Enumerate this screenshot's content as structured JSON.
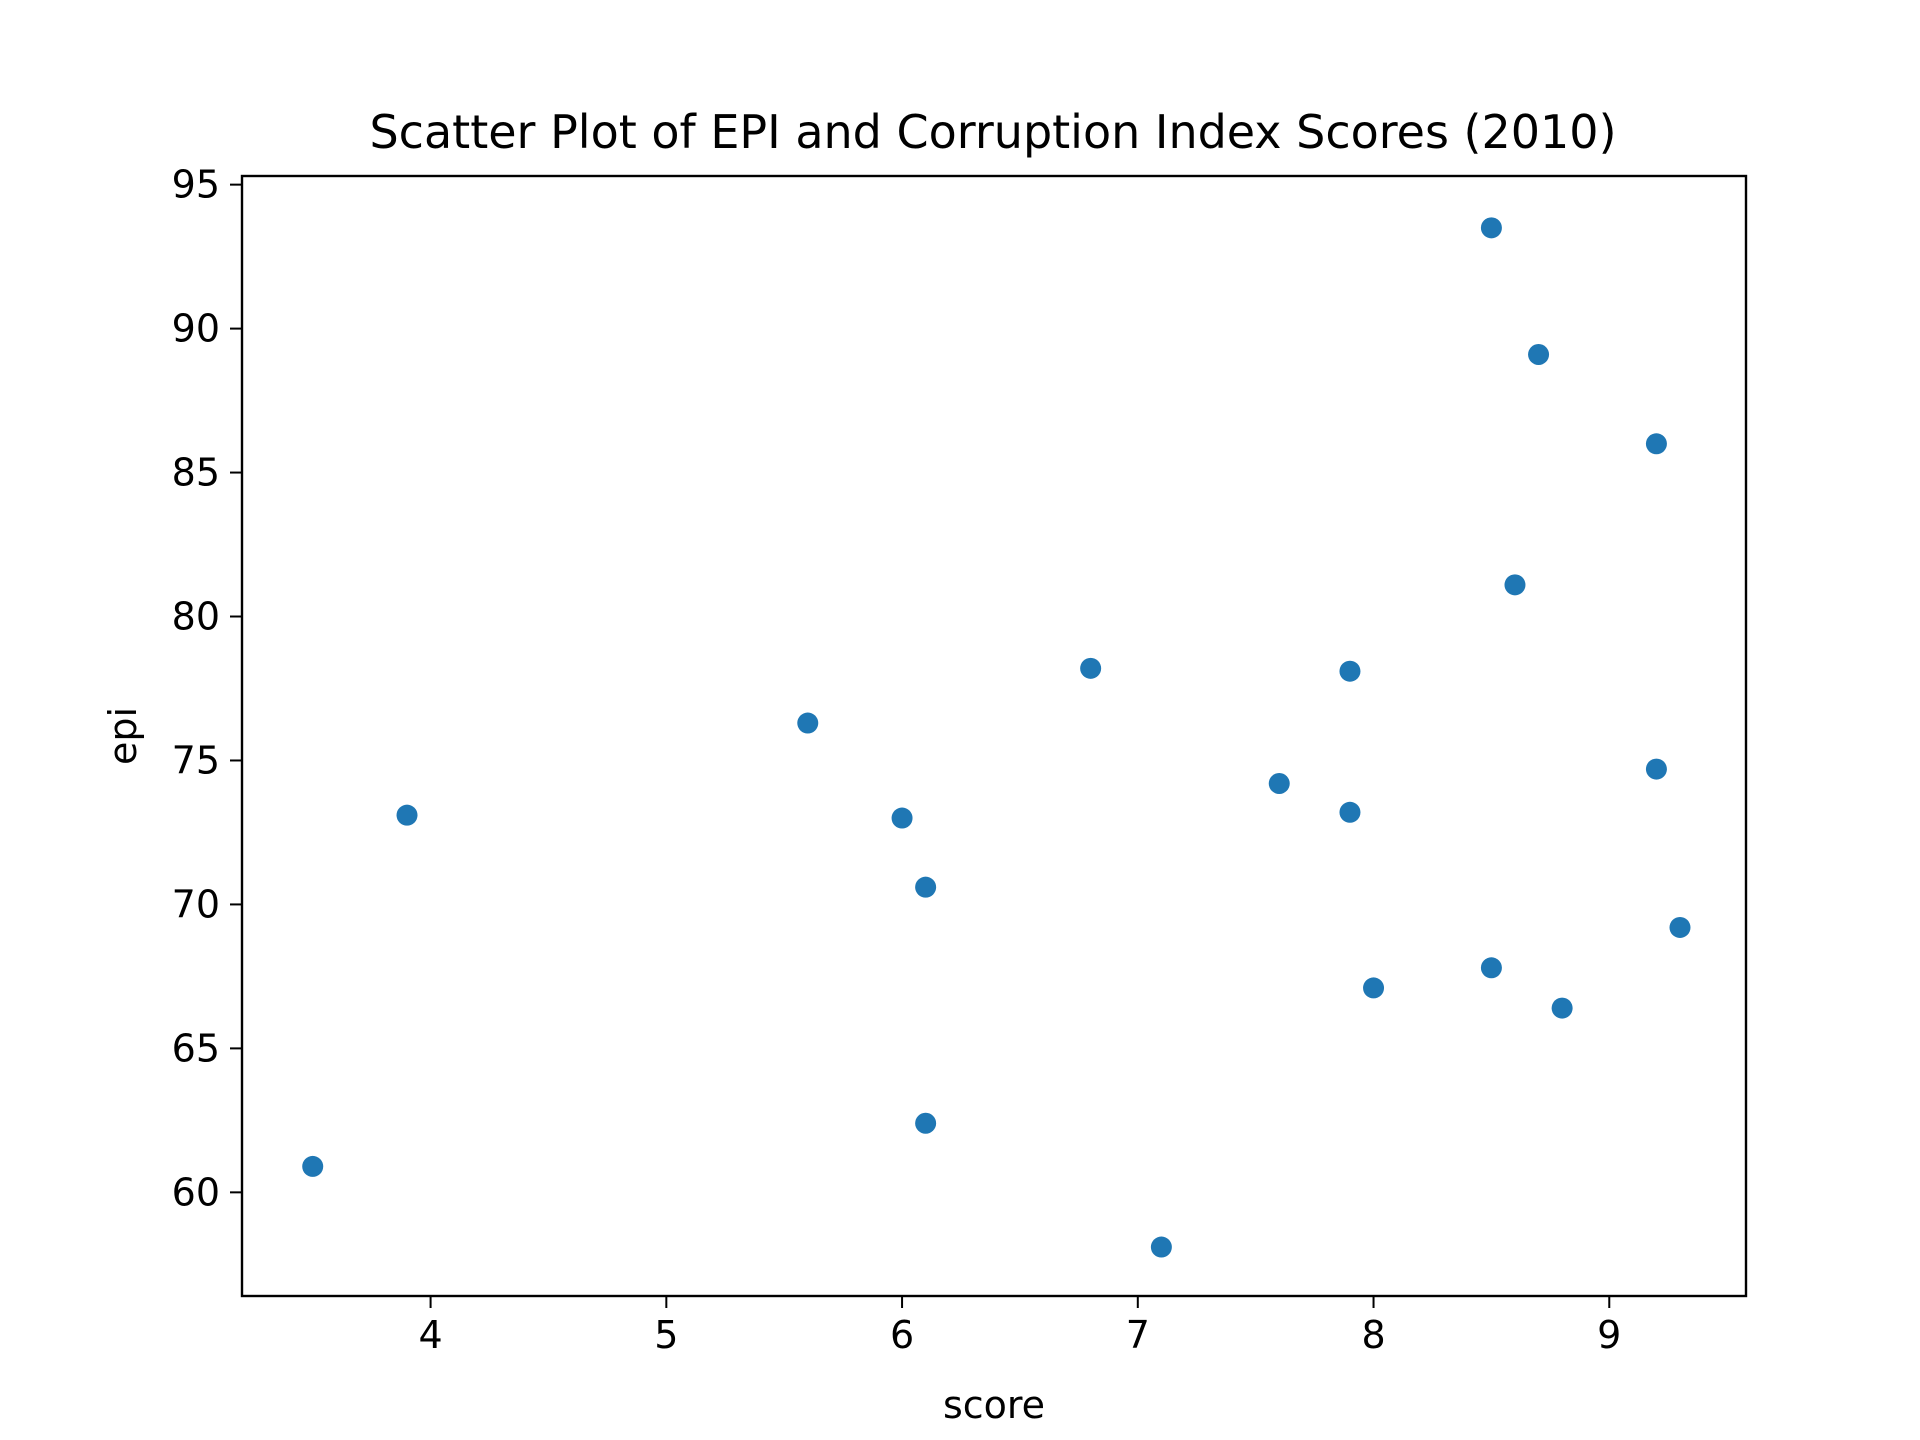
{
  "chart_data": {
    "type": "scatter",
    "title": "Scatter Plot of EPI and Corruption Index Scores (2010)",
    "xlabel": "score",
    "ylabel": "epi",
    "xlim": [
      3.2,
      9.58
    ],
    "ylim": [
      56.4,
      95.3
    ],
    "xticks": [
      4,
      5,
      6,
      7,
      8,
      9
    ],
    "yticks": [
      60,
      65,
      70,
      75,
      80,
      85,
      90,
      95
    ],
    "grid": false,
    "legend": "none",
    "color": "#1f77b4",
    "points": [
      {
        "x": 8.5,
        "y": 93.5
      },
      {
        "x": 8.7,
        "y": 89.1
      },
      {
        "x": 9.2,
        "y": 86.0
      },
      {
        "x": 8.6,
        "y": 81.1
      },
      {
        "x": 6.8,
        "y": 78.2
      },
      {
        "x": 7.9,
        "y": 78.1
      },
      {
        "x": 5.6,
        "y": 76.3
      },
      {
        "x": 9.2,
        "y": 74.7
      },
      {
        "x": 7.6,
        "y": 74.2
      },
      {
        "x": 7.9,
        "y": 73.2
      },
      {
        "x": 3.9,
        "y": 73.1
      },
      {
        "x": 6.0,
        "y": 73.0
      },
      {
        "x": 6.1,
        "y": 70.6
      },
      {
        "x": 9.3,
        "y": 69.2
      },
      {
        "x": 8.5,
        "y": 67.8
      },
      {
        "x": 8.0,
        "y": 67.1
      },
      {
        "x": 8.8,
        "y": 66.4
      },
      {
        "x": 6.1,
        "y": 62.4
      },
      {
        "x": 3.5,
        "y": 60.9
      },
      {
        "x": 7.1,
        "y": 58.1
      }
    ]
  }
}
